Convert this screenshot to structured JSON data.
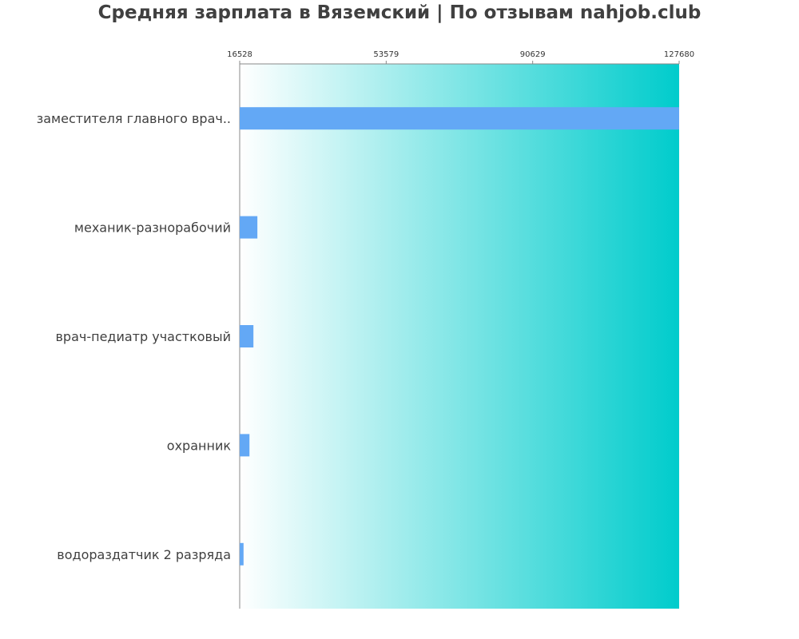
{
  "title": "Средняя зарплата в Вяземский | По отзывам nahjob.club",
  "chart_data": {
    "type": "bar",
    "orientation": "horizontal",
    "title": "Средняя зарплата в Вяземский | По отзывам nahjob.club",
    "categories": [
      "заместителя главного врач..",
      "механик-разнорабочий",
      "врач-педиатр участковый",
      "охранник",
      "водораздатчик 2 разряда"
    ],
    "values": [
      127680,
      21000,
      20000,
      19000,
      17500
    ],
    "xlim": [
      16528,
      127680
    ],
    "ticks": [
      16528,
      53579,
      90629,
      127680
    ],
    "tick_labels": [
      "16528",
      "53579",
      "90629",
      "127680"
    ],
    "xlabel": "",
    "ylabel": "",
    "grid": false,
    "legend": "none",
    "colors": {
      "bar": "#63a8f5",
      "background_start": "#ffffff",
      "background_end": "#00cccc",
      "axis": "#888888",
      "text": "#404040"
    }
  }
}
